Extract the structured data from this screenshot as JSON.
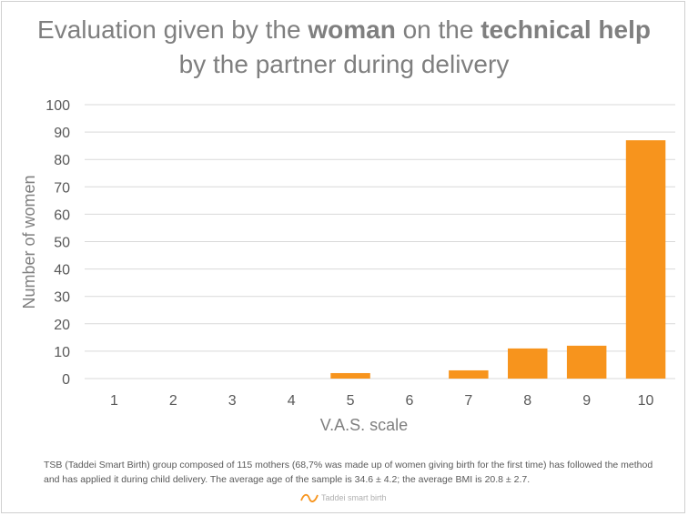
{
  "title": {
    "part1": "Evaluation given by the ",
    "bold1": "woman",
    "part2": " on the ",
    "bold2": "technical help",
    "part3": " by the partner during delivery"
  },
  "footnote": "TSB (Taddei Smart Birth) group composed of 115 mothers (68,7% was made up of women giving birth for the first time) has followed the method and has applied it during child delivery. The average age of the sample is 34.6 ± 4.2; the average BMI is 20.8 ± 2.7.",
  "logo_text": "Taddei smart birth",
  "colors": {
    "bar": "#f7941d",
    "grid": "#d9d9d9",
    "text": "#595959"
  },
  "chart_data": {
    "type": "bar",
    "title": "Evaluation given by the woman on the technical help by the partner during delivery",
    "xlabel": "V.A.S. scale",
    "ylabel": "Number of women",
    "categories": [
      "1",
      "2",
      "3",
      "4",
      "5",
      "6",
      "7",
      "8",
      "9",
      "10"
    ],
    "values": [
      0,
      0,
      0,
      0,
      2,
      0,
      3,
      11,
      12,
      87
    ],
    "ylim": [
      0,
      100
    ],
    "yticks": [
      0,
      10,
      20,
      30,
      40,
      50,
      60,
      70,
      80,
      90,
      100
    ],
    "grid": true,
    "legend": "none"
  }
}
